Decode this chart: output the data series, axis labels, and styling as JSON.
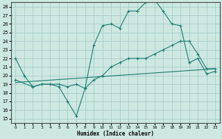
{
  "xlabel": "Humidex (Indice chaleur)",
  "bg_color": "#cce8e0",
  "grid_color": "#aacccc",
  "line_color": "#1a7a6e",
  "xlim": [
    -0.5,
    23.5
  ],
  "ylim": [
    14.5,
    28.5
  ],
  "xticks": [
    0,
    1,
    2,
    3,
    4,
    5,
    6,
    7,
    8,
    9,
    10,
    11,
    12,
    13,
    14,
    15,
    16,
    17,
    18,
    19,
    20,
    21,
    22,
    23
  ],
  "yticks": [
    15,
    16,
    17,
    18,
    19,
    20,
    21,
    22,
    23,
    24,
    25,
    26,
    27,
    28
  ],
  "series1_x": [
    0,
    1,
    2,
    3,
    4,
    5,
    6,
    7,
    8,
    9,
    10,
    11,
    12,
    13,
    14,
    15,
    16,
    17,
    18,
    19,
    20,
    21,
    22,
    23
  ],
  "series1_y": [
    22,
    20,
    18.7,
    19,
    19,
    18.7,
    17,
    15.3,
    18.5,
    23.5,
    25.8,
    26,
    25.5,
    27.5,
    27.5,
    28.5,
    28.8,
    27.5,
    26,
    25.8,
    21.5,
    22,
    20.2,
    20.5
  ],
  "series2_x": [
    0,
    2,
    3,
    4,
    5,
    6,
    7,
    8,
    9,
    10,
    11,
    12,
    13,
    14,
    15,
    16,
    17,
    18,
    19,
    20,
    21,
    22,
    23
  ],
  "series2_y": [
    19.5,
    18.7,
    19,
    19,
    19,
    18.7,
    19,
    18.5,
    19.5,
    20,
    21,
    21.5,
    22,
    22,
    22,
    22.5,
    23,
    23.5,
    24,
    24,
    22.5,
    20.8,
    20.8
  ],
  "series3_x": [
    0,
    23
  ],
  "series3_y": [
    19.2,
    20.8
  ],
  "marker": "+"
}
